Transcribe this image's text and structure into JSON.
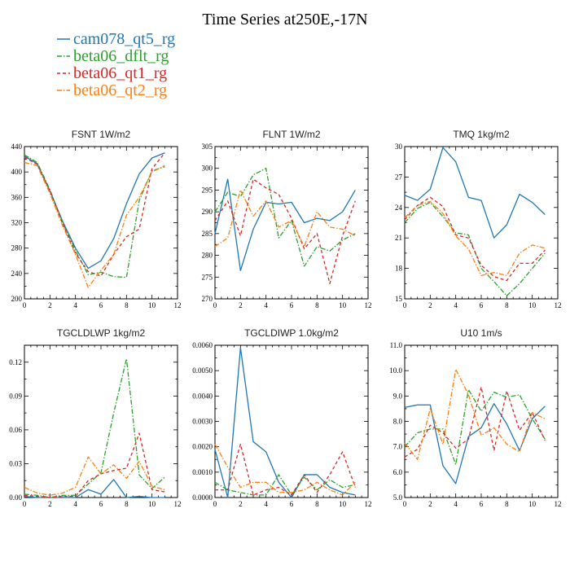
{
  "title": "Time Series at250E,-17N",
  "legend": [
    {
      "name": "cam078_qt5_rg",
      "color": "#1f77b4",
      "dash": "solid"
    },
    {
      "name": "beta06_dflt_rg",
      "color": "#2ca02c",
      "dash": "dashdot"
    },
    {
      "name": "beta06_qt1_rg",
      "color": "#d62728",
      "dash": "dashed"
    },
    {
      "name": "beta06_qt2_rg",
      "color": "#ff7f0e",
      "dash": "dashdot"
    }
  ],
  "chart_data": [
    {
      "type": "line",
      "title": "FSNT 1W/m2",
      "xlim": [
        0,
        12
      ],
      "ylim": [
        200,
        440
      ],
      "xticks": [
        0,
        2,
        4,
        6,
        8,
        10,
        12
      ],
      "yticks": [
        200,
        240,
        280,
        320,
        360,
        400,
        440
      ],
      "yticklabels": [
        "200",
        "240",
        "280",
        "320",
        "360",
        "400",
        "440"
      ],
      "x": [
        0,
        1,
        2,
        3,
        4,
        5,
        6,
        7,
        8,
        9,
        10,
        11
      ],
      "series": [
        {
          "name": "cam078_qt5_rg",
          "values": [
            425,
            413,
            370,
            322,
            280,
            248,
            260,
            295,
            350,
            397,
            422,
            430
          ]
        },
        {
          "name": "beta06_dflt_rg",
          "values": [
            427,
            415,
            372,
            320,
            276,
            238,
            242,
            235,
            234,
            355,
            402,
            408
          ]
        },
        {
          "name": "beta06_qt1_rg",
          "values": [
            423,
            412,
            370,
            318,
            272,
            243,
            236,
            270,
            298,
            310,
            405,
            430
          ]
        },
        {
          "name": "beta06_qt2_rg",
          "values": [
            415,
            410,
            366,
            315,
            270,
            218,
            245,
            270,
            332,
            360,
            400,
            410
          ]
        }
      ]
    },
    {
      "type": "line",
      "title": "FLNT 1W/m2",
      "xlim": [
        0,
        12
      ],
      "ylim": [
        270,
        305
      ],
      "xticks": [
        0,
        2,
        4,
        6,
        8,
        10,
        12
      ],
      "yticks": [
        270,
        275,
        280,
        285,
        290,
        295,
        300,
        305
      ],
      "yticklabels": [
        "270",
        "275",
        "280",
        "285",
        "290",
        "295",
        "300",
        "305"
      ],
      "x": [
        0,
        1,
        2,
        3,
        4,
        5,
        6,
        7,
        8,
        9,
        10,
        11
      ],
      "series": [
        {
          "name": "cam078_qt5_rg",
          "values": [
            285,
            297.5,
            276.5,
            286,
            292.2,
            291.8,
            292.2,
            287.5,
            288.5,
            288,
            290,
            295
          ]
        },
        {
          "name": "beta06_dflt_rg",
          "values": [
            290,
            294.5,
            293.5,
            298.5,
            300,
            284,
            288,
            277.5,
            282,
            281,
            283.5,
            285
          ]
        },
        {
          "name": "beta06_qt1_rg",
          "values": [
            288,
            292.5,
            284.5,
            297.5,
            295.5,
            294,
            288.5,
            281.5,
            285,
            273.5,
            284.5,
            292.5
          ]
        },
        {
          "name": "beta06_qt2_rg",
          "values": [
            282,
            284,
            295,
            289,
            292.5,
            286.5,
            288,
            282,
            290,
            286.5,
            286,
            284.5
          ]
        }
      ]
    },
    {
      "type": "line",
      "title": "TMQ 1kg/m2",
      "xlim": [
        0,
        12
      ],
      "ylim": [
        15,
        30
      ],
      "xticks": [
        0,
        2,
        4,
        6,
        8,
        10,
        12
      ],
      "yticks": [
        15,
        18,
        21,
        24,
        27,
        30
      ],
      "yticklabels": [
        "15",
        "18",
        "21",
        "24",
        "27",
        "30"
      ],
      "x": [
        0,
        1,
        2,
        3,
        4,
        5,
        6,
        7,
        8,
        9,
        10,
        11
      ],
      "series": [
        {
          "name": "cam078_qt5_rg",
          "values": [
            25.2,
            24.7,
            25.8,
            29.9,
            28.5,
            25.0,
            24.7,
            21.0,
            22.3,
            25.3,
            24.5,
            23.3
          ]
        },
        {
          "name": "beta06_dflt_rg",
          "values": [
            22.5,
            23.9,
            24.5,
            23.1,
            21.5,
            21.3,
            18.0,
            16.7,
            15.3,
            16.5,
            18.0,
            19.5
          ]
        },
        {
          "name": "beta06_qt1_rg",
          "values": [
            22.8,
            24.2,
            25.0,
            24.1,
            21.3,
            21.0,
            18.3,
            17.2,
            16.8,
            18.5,
            18.5,
            19.8
          ]
        },
        {
          "name": "beta06_qt2_rg",
          "values": [
            23.0,
            24.2,
            24.6,
            23.4,
            21.2,
            19.9,
            17.3,
            17.6,
            17.3,
            19.5,
            20.3,
            20.0
          ]
        }
      ]
    },
    {
      "type": "line",
      "title": "TGCLDLWP 1kg/m2",
      "xlim": [
        0,
        12
      ],
      "ylim": [
        0,
        0.135
      ],
      "xticks": [
        0,
        2,
        4,
        6,
        8,
        10,
        12
      ],
      "yticks": [
        0,
        0.03,
        0.06,
        0.09,
        0.12
      ],
      "yticklabels": [
        "0.00",
        "0.03",
        "0.06",
        "0.09",
        "0.12"
      ],
      "x": [
        0,
        1,
        2,
        3,
        4,
        5,
        6,
        7,
        8,
        9,
        10,
        11
      ],
      "series": [
        {
          "name": "cam078_qt5_rg",
          "values": [
            0.001,
            0.0,
            0.0,
            0.0,
            0.0,
            0.007,
            0.003,
            0.016,
            0.0,
            0.001,
            0.0,
            0.0
          ]
        },
        {
          "name": "beta06_dflt_rg",
          "values": [
            0.003,
            0.002,
            0.0,
            0.002,
            0.002,
            0.012,
            0.022,
            0.075,
            0.123,
            0.02,
            0.008,
            0.018
          ]
        },
        {
          "name": "beta06_qt1_rg",
          "values": [
            0.002,
            0.001,
            0.0,
            0.001,
            0.001,
            0.015,
            0.021,
            0.024,
            0.026,
            0.057,
            0.007,
            0.005
          ]
        },
        {
          "name": "beta06_qt2_rg",
          "values": [
            0.009,
            0.004,
            0.002,
            0.004,
            0.009,
            0.036,
            0.021,
            0.029,
            0.017,
            0.032,
            0.01,
            0.007
          ]
        }
      ]
    },
    {
      "type": "line",
      "title": "TGCLDIWP 1.0kg/m2",
      "xlim": [
        0,
        12
      ],
      "ylim": [
        0,
        0.006
      ],
      "xticks": [
        0,
        2,
        4,
        6,
        8,
        10,
        12
      ],
      "yticks": [
        0,
        0.001,
        0.002,
        0.003,
        0.004,
        0.005,
        0.006
      ],
      "yticklabels": [
        "0.0000",
        "0.0010",
        "0.0020",
        "0.0030",
        "0.0040",
        "0.0050",
        "0.0060"
      ],
      "x": [
        0,
        1,
        2,
        3,
        4,
        5,
        6,
        7,
        8,
        9,
        10,
        11
      ],
      "series": [
        {
          "name": "cam078_qt5_rg",
          "values": [
            0.0019,
            0.0,
            0.0059,
            0.0022,
            0.0018,
            0.0006,
            0.0,
            0.0009,
            0.0009,
            0.0004,
            0.0002,
            0.0001
          ]
        },
        {
          "name": "beta06_dflt_rg",
          "values": [
            0.0006,
            0.0003,
            0.0002,
            0.0001,
            0.0001,
            0.0009,
            0.0001,
            0.0008,
            0.0003,
            0.0007,
            0.0004,
            0.0005
          ]
        },
        {
          "name": "beta06_qt1_rg",
          "values": [
            0.0003,
            0.0003,
            0.0021,
            0.0001,
            0.0003,
            0.0004,
            0.0001,
            0.0009,
            0.0002,
            0.0009,
            0.0018,
            0.0004
          ]
        },
        {
          "name": "beta06_qt2_rg",
          "values": [
            0.0021,
            0.0012,
            0.0004,
            0.0006,
            0.0006,
            0.0002,
            0.0002,
            0.0003,
            0.0006,
            0.0003,
            0.0001,
            0.0006
          ]
        }
      ]
    },
    {
      "type": "line",
      "title": "U10 1m/s",
      "xlim": [
        0,
        12
      ],
      "ylim": [
        5,
        11
      ],
      "xticks": [
        0,
        2,
        4,
        6,
        8,
        10,
        12
      ],
      "yticks": [
        5,
        6,
        7,
        8,
        9,
        10,
        11
      ],
      "yticklabels": [
        "5.0",
        "6.0",
        "7.0",
        "8.0",
        "9.0",
        "10.0",
        "11.0"
      ],
      "x": [
        0,
        1,
        2,
        3,
        4,
        5,
        6,
        7,
        8,
        9,
        10,
        11
      ],
      "series": [
        {
          "name": "cam078_qt5_rg",
          "values": [
            8.55,
            8.65,
            8.65,
            6.25,
            5.55,
            7.4,
            7.75,
            8.7,
            7.9,
            6.85,
            8.1,
            8.6
          ]
        },
        {
          "name": "beta06_dflt_rg",
          "values": [
            7.0,
            7.55,
            7.7,
            7.7,
            6.3,
            9.25,
            8.4,
            9.15,
            8.95,
            9.05,
            8.1,
            7.3
          ]
        },
        {
          "name": "beta06_qt1_rg",
          "values": [
            6.6,
            6.9,
            7.85,
            7.55,
            6.95,
            7.3,
            9.35,
            6.85,
            9.2,
            7.65,
            8.35,
            7.25
          ]
        },
        {
          "name": "beta06_qt2_rg",
          "values": [
            7.15,
            6.5,
            8.5,
            7.1,
            10.05,
            9.05,
            7.45,
            7.75,
            7.1,
            6.8,
            8.35,
            8.1
          ]
        }
      ]
    }
  ]
}
